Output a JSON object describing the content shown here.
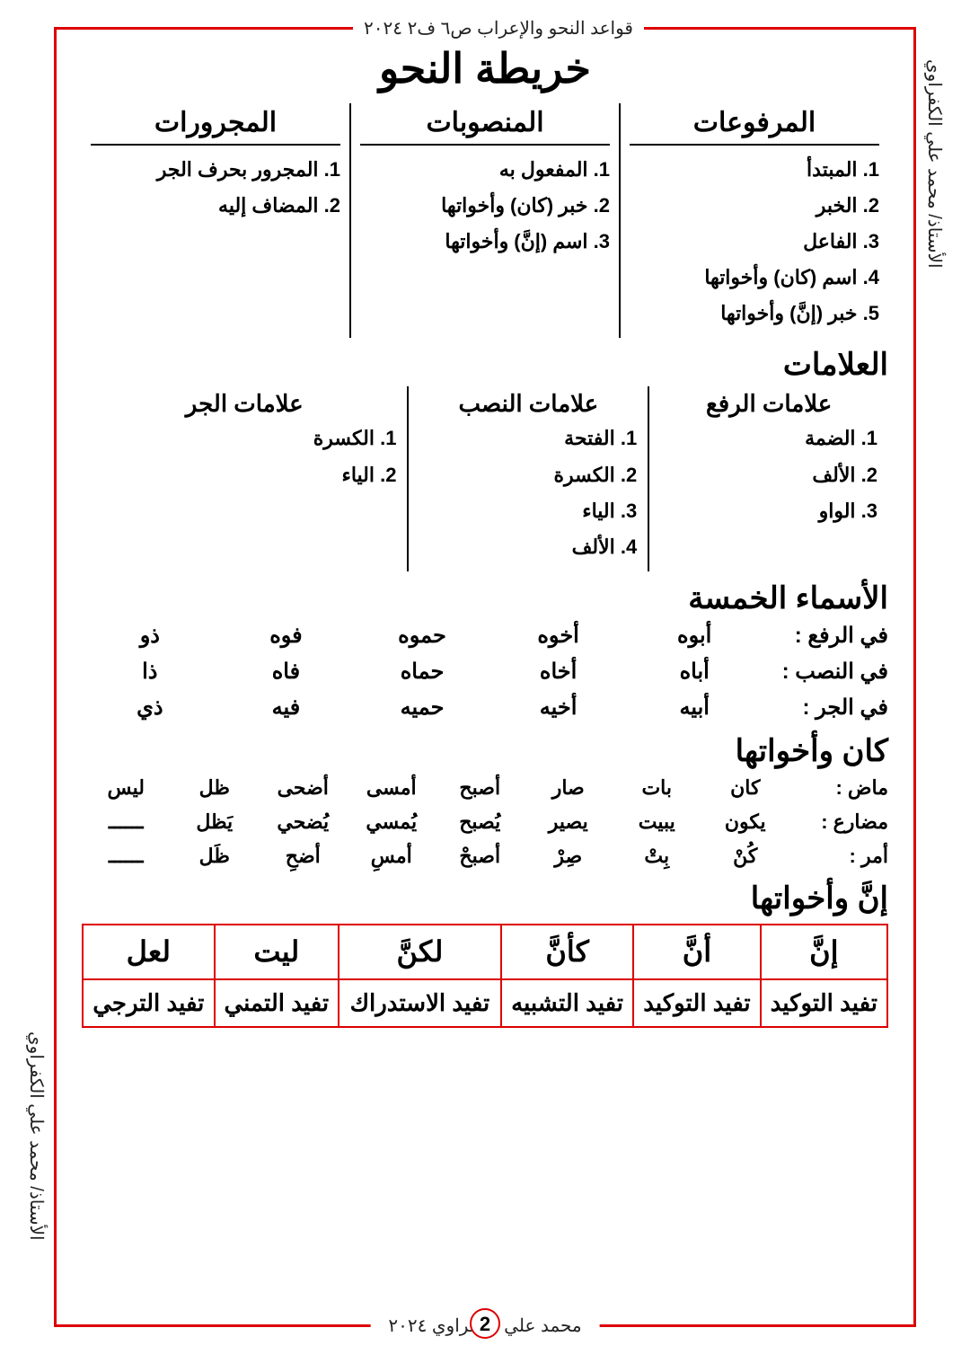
{
  "doc_header": "قواعد النحو والإعراب ص٦ ف٢ ٢٠٢٤",
  "doc_footer": "محمد علي الكفراوي ٢٠٢٤",
  "teacher": "الأستاذ/ محمد علي الكفراوي",
  "page_number": "2",
  "title": "خريطة النحو",
  "columns": {
    "raised": {
      "head": "المرفوعات",
      "items": [
        "1. المبتدأ",
        "2. الخبر",
        "3. الفاعل",
        "4. اسم (كان) وأخواتها",
        "5. خبر (إنَّ) وأخواتها"
      ]
    },
    "accus": {
      "head": "المنصوبات",
      "items": [
        "1. المفعول به",
        "2. خبر (كان) وأخواتها",
        "3. اسم (إنَّ) وأخواتها"
      ]
    },
    "gen": {
      "head": "المجرورات",
      "items": [
        "1. المجرور بحرف الجر",
        "2. المضاف إليه"
      ]
    }
  },
  "marks_title": "العلامات",
  "marks": {
    "raf": {
      "head": "علامات الرفع",
      "items": [
        "1. الضمة",
        "2. الألف",
        "3. الواو"
      ]
    },
    "nasb": {
      "head": "علامات النصب",
      "items": [
        "1. الفتحة",
        "2. الكسرة",
        "3. الياء",
        "4. الألف"
      ]
    },
    "jar": {
      "head": "علامات الجر",
      "items": [
        "1. الكسرة",
        "2. الياء"
      ]
    }
  },
  "five_title": "الأسماء الخمسة",
  "five": {
    "raf": {
      "lbl": "في الرفع   :",
      "w": [
        "أبوه",
        "أخوه",
        "حموه",
        "فوه",
        "ذو"
      ]
    },
    "nasb": {
      "lbl": "في النصب  :",
      "w": [
        "أباه",
        "أخاه",
        "حماه",
        "فاه",
        "ذا"
      ]
    },
    "jar": {
      "lbl": "في الجر    :",
      "w": [
        "أبيه",
        "أخيه",
        "حميه",
        "فيه",
        "ذي"
      ]
    }
  },
  "kana_title": "كان وأخواتها",
  "kana": {
    "past": {
      "lbl": "ماض   :",
      "w": [
        "كان",
        "بات",
        "صار",
        "أصبح",
        "أمسى",
        "أضحى",
        "ظل",
        "ليس"
      ]
    },
    "present": {
      "lbl": "مضارع :",
      "w": [
        "يكون",
        "يبيت",
        "يصير",
        "يُصبح",
        "يُمسي",
        "يُضحي",
        "يَظل",
        "ــــــ"
      ]
    },
    "imper": {
      "lbl": "أمر    :",
      "w": [
        "كُنْ",
        "بِتْ",
        "صِرْ",
        "أصبحْ",
        "أمسِ",
        "أضحِ",
        "ظَل",
        "ــــــ"
      ]
    }
  },
  "inna_title": "إنَّ وأخواتها",
  "inna": {
    "heads": [
      "إنَّ",
      "أنَّ",
      "كأنَّ",
      "لكنَّ",
      "ليت",
      "لعل"
    ],
    "uses": [
      "تفيد التوكيد",
      "تفيد التوكيد",
      "تفيد التشبيه",
      "تفيد الاستدراك",
      "تفيد التمني",
      "تفيد الترجي"
    ]
  }
}
